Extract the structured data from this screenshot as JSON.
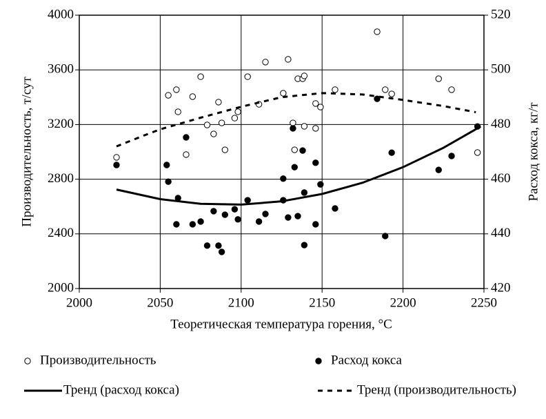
{
  "chart_data": {
    "type": "scatter",
    "xlabel": "Теоретическая температура горения, °C",
    "ylabel": "Производительность, т/сут",
    "y2label": "Расход кокса, кг/т",
    "xlim": [
      2000,
      2250
    ],
    "xticks": [
      2000,
      2050,
      2100,
      2150,
      2200,
      2250
    ],
    "ylim": [
      2000,
      4000
    ],
    "yticks": [
      2000,
      2400,
      2800,
      3200,
      3600,
      4000
    ],
    "y2lim": [
      420,
      520
    ],
    "y2ticks": [
      420,
      440,
      460,
      480,
      500,
      520
    ],
    "grid": true,
    "legend": "bottom",
    "series": [
      {
        "name": "Производительность",
        "color": "#000000",
        "style": "open-circle",
        "x": [
          2023,
          2055,
          2060,
          2061,
          2066,
          2070,
          2075,
          2079,
          2083,
          2086,
          2088,
          2090,
          2096,
          2098,
          2104,
          2111,
          2115,
          2126,
          2129,
          2132,
          2133,
          2135,
          2138,
          2139,
          2139,
          2146,
          2146,
          2149,
          2158,
          2184,
          2189,
          2193,
          2222,
          2230,
          2246
        ],
        "values": [
          2960,
          3414,
          3455,
          3293,
          2980,
          3404,
          3550,
          3197,
          3131,
          3364,
          3212,
          3015,
          3247,
          3293,
          3550,
          3348,
          3657,
          3429,
          3677,
          3212,
          3015,
          3535,
          3535,
          3556,
          3187,
          3354,
          3172,
          3328,
          3455,
          3879,
          3455,
          3424,
          3535,
          3455,
          2995
        ]
      },
      {
        "name": "Расход кокса",
        "color": "#000000",
        "style": "filled-circle",
        "axis": "y2",
        "x": [
          2023,
          2054,
          2055,
          2061,
          2060,
          2066,
          2070,
          2075,
          2079,
          2083,
          2086,
          2088,
          2090,
          2096,
          2098,
          2104,
          2111,
          2115,
          2126,
          2126,
          2129,
          2132,
          2133,
          2135,
          2138,
          2139,
          2139,
          2146,
          2146,
          2149,
          2158,
          2184,
          2189,
          2193,
          2222,
          2230,
          2246
        ],
        "values": [
          465.2,
          465.2,
          459.1,
          453.1,
          443.5,
          475.3,
          443.5,
          444.5,
          435.7,
          448.3,
          435.7,
          433.4,
          447.0,
          449.0,
          445.3,
          452.3,
          444.5,
          447.3,
          460.2,
          452.3,
          446.0,
          478.6,
          464.4,
          446.5,
          470.5,
          455.1,
          435.9,
          466.0,
          443.5,
          458.1,
          449.3,
          489.4,
          439.2,
          469.7,
          463.4,
          468.5,
          479.3
        ]
      },
      {
        "name": "Тренд (расход кокса)",
        "color": "#000000",
        "style": "solid",
        "axis": "y2",
        "x": [
          2023,
          2050,
          2075,
          2100,
          2125,
          2150,
          2175,
          2200,
          2225,
          2248
        ],
        "values": [
          456.2,
          452.7,
          451.0,
          450.7,
          451.9,
          454.6,
          458.7,
          464.4,
          471.5,
          479.3
        ]
      },
      {
        "name": "Тренд (производительность)",
        "color": "#000000",
        "style": "dashed",
        "x": [
          2023,
          2040,
          2050,
          2075,
          2100,
          2125,
          2150,
          2175,
          2200,
          2225,
          2245
        ],
        "values": [
          3040,
          3120,
          3165,
          3250,
          3330,
          3400,
          3430,
          3420,
          3380,
          3335,
          3290
        ]
      }
    ]
  }
}
